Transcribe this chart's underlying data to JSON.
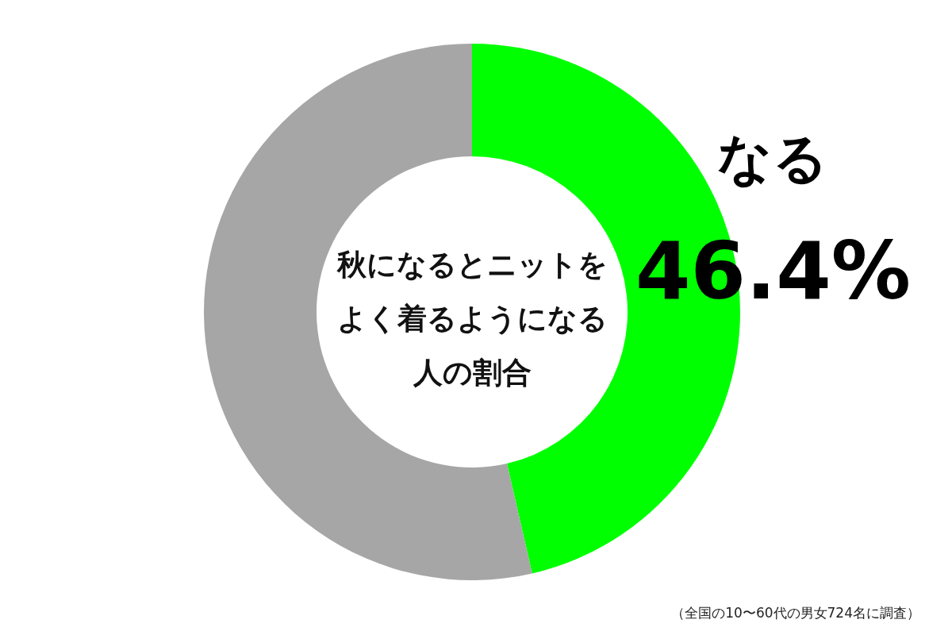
{
  "chart_data": {
    "type": "donut",
    "title": "秋になるとニットをよく着るようになる人の割合",
    "categories": [
      "なる",
      null
    ],
    "values": [
      46.4,
      53.6
    ],
    "colors": [
      "#00ff00",
      "#a6a6a6"
    ],
    "value_labels": [
      "46.4%",
      null
    ],
    "legend": false,
    "annotations": [
      "（全国の10〜60代の男女724名に調査）"
    ]
  }
}
